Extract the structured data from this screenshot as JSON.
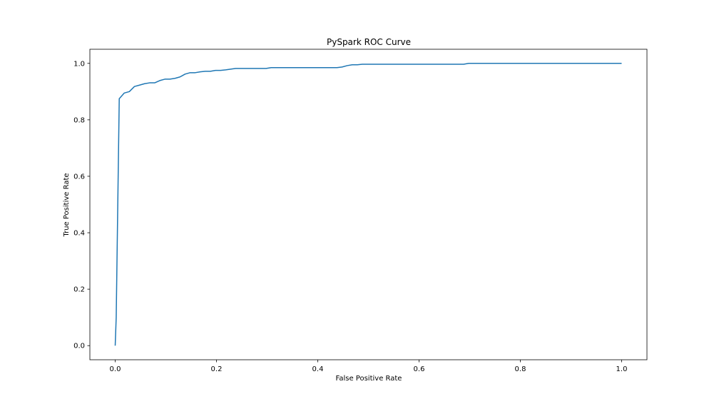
{
  "chart_data": {
    "type": "line",
    "title": "PySpark ROC Curve",
    "xlabel": "False Positive Rate",
    "ylabel": "True Positive Rate",
    "xlim": [
      -0.05,
      1.05
    ],
    "ylim": [
      -0.05,
      1.05
    ],
    "xticks": [
      0.0,
      0.2,
      0.4,
      0.6,
      0.8,
      1.0
    ],
    "xtick_labels": [
      "0.0",
      "0.2",
      "0.4",
      "0.6",
      "0.8",
      "1.0"
    ],
    "yticks": [
      0.0,
      0.2,
      0.4,
      0.6,
      0.8,
      1.0
    ],
    "ytick_labels": [
      "0.0",
      "0.2",
      "0.4",
      "0.6",
      "0.8",
      "1.0"
    ],
    "grid": false,
    "legend": false,
    "series": [
      {
        "color": "#1f77b4",
        "x": [
          0.0,
          0.002,
          0.008,
          0.018,
          0.028,
          0.038,
          0.048,
          0.058,
          0.068,
          0.078,
          0.088,
          0.098,
          0.108,
          0.118,
          0.128,
          0.138,
          0.148,
          0.158,
          0.168,
          0.178,
          0.188,
          0.198,
          0.208,
          0.218,
          0.238,
          0.268,
          0.298,
          0.308,
          0.348,
          0.398,
          0.438,
          0.448,
          0.458,
          0.468,
          0.478,
          0.488,
          0.548,
          0.598,
          0.648,
          0.688,
          0.698,
          0.748,
          0.848,
          1.0
        ],
        "y": [
          0.0,
          0.1,
          0.875,
          0.895,
          0.9,
          0.918,
          0.923,
          0.928,
          0.931,
          0.931,
          0.939,
          0.944,
          0.944,
          0.947,
          0.952,
          0.962,
          0.967,
          0.967,
          0.97,
          0.972,
          0.972,
          0.975,
          0.975,
          0.977,
          0.982,
          0.982,
          0.982,
          0.985,
          0.985,
          0.985,
          0.985,
          0.987,
          0.992,
          0.995,
          0.995,
          0.997,
          0.997,
          0.997,
          0.997,
          0.997,
          1.0,
          1.0,
          1.0,
          1.0
        ]
      }
    ]
  }
}
